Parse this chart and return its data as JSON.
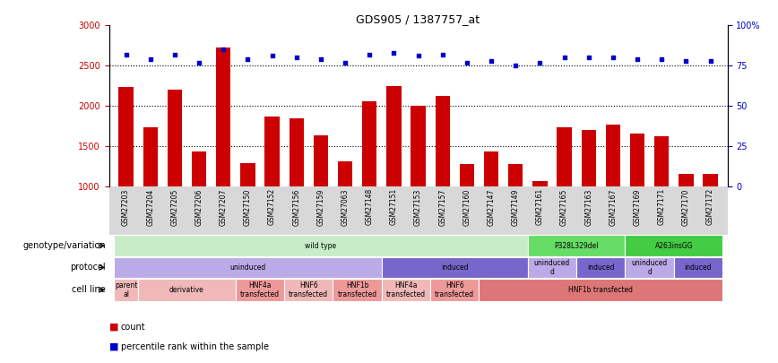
{
  "title": "GDS905 / 1387757_at",
  "samples": [
    "GSM27203",
    "GSM27204",
    "GSM27205",
    "GSM27206",
    "GSM27207",
    "GSM27150",
    "GSM27152",
    "GSM27156",
    "GSM27159",
    "GSM27063",
    "GSM27148",
    "GSM27151",
    "GSM27153",
    "GSM27157",
    "GSM27160",
    "GSM27147",
    "GSM27149",
    "GSM27161",
    "GSM27165",
    "GSM27163",
    "GSM27167",
    "GSM27169",
    "GSM27171",
    "GSM27170",
    "GSM27172"
  ],
  "counts": [
    2230,
    1730,
    2200,
    1430,
    2720,
    1280,
    1870,
    1840,
    1630,
    1310,
    2050,
    2240,
    2000,
    2120,
    1270,
    1430,
    1270,
    1060,
    1730,
    1700,
    1760,
    1650,
    1620,
    1150,
    1150
  ],
  "percentiles": [
    82,
    79,
    82,
    77,
    85,
    79,
    81,
    80,
    79,
    77,
    82,
    83,
    81,
    82,
    77,
    78,
    75,
    77,
    80,
    80,
    80,
    79,
    79,
    78,
    78
  ],
  "bar_color": "#cc0000",
  "dot_color": "#0000cc",
  "ylim_left": [
    1000,
    3000
  ],
  "ylim_right": [
    0,
    100
  ],
  "yticks_left": [
    1000,
    1500,
    2000,
    2500,
    3000
  ],
  "yticks_right": [
    0,
    25,
    50,
    75,
    100
  ],
  "dotted_line_values": [
    1500,
    2000,
    2500
  ],
  "genotype_segments": [
    {
      "text": "wild type",
      "start": 0,
      "end": 17,
      "color": "#c8ecc8"
    },
    {
      "text": "P328L329del",
      "start": 17,
      "end": 21,
      "color": "#66dd66"
    },
    {
      "text": "A263insGG",
      "start": 21,
      "end": 25,
      "color": "#44cc44"
    }
  ],
  "protocol_segments": [
    {
      "text": "uninduced",
      "start": 0,
      "end": 11,
      "color": "#bbaae8"
    },
    {
      "text": "induced",
      "start": 11,
      "end": 17,
      "color": "#7766cc"
    },
    {
      "text": "uninduced\nd",
      "start": 17,
      "end": 19,
      "color": "#bbaae8"
    },
    {
      "text": "induced",
      "start": 19,
      "end": 21,
      "color": "#7766cc"
    },
    {
      "text": "uninduced\nd",
      "start": 21,
      "end": 23,
      "color": "#bbaae8"
    },
    {
      "text": "induced",
      "start": 23,
      "end": 25,
      "color": "#7766cc"
    }
  ],
  "cell_segments": [
    {
      "text": "parent\nal",
      "start": 0,
      "end": 1,
      "color": "#f0b8b8"
    },
    {
      "text": "derivative",
      "start": 1,
      "end": 5,
      "color": "#f0b8b8"
    },
    {
      "text": "HNF4a\ntransfected",
      "start": 5,
      "end": 7,
      "color": "#ee9999"
    },
    {
      "text": "HNF6\ntransfected",
      "start": 7,
      "end": 9,
      "color": "#f0b8b8"
    },
    {
      "text": "HNF1b\ntransfected",
      "start": 9,
      "end": 11,
      "color": "#ee9999"
    },
    {
      "text": "HNF4a\ntransfected",
      "start": 11,
      "end": 13,
      "color": "#f0b8b8"
    },
    {
      "text": "HNF6\ntransfected",
      "start": 13,
      "end": 15,
      "color": "#ee9999"
    },
    {
      "text": "HNF1b transfected",
      "start": 15,
      "end": 25,
      "color": "#dd7777"
    }
  ],
  "legend_items": [
    {
      "color": "#cc0000",
      "label": "count"
    },
    {
      "color": "#0000cc",
      "label": "percentile rank within the sample"
    }
  ],
  "xticklabel_bg": "#d8d8d8",
  "plot_bg": "#ffffff"
}
